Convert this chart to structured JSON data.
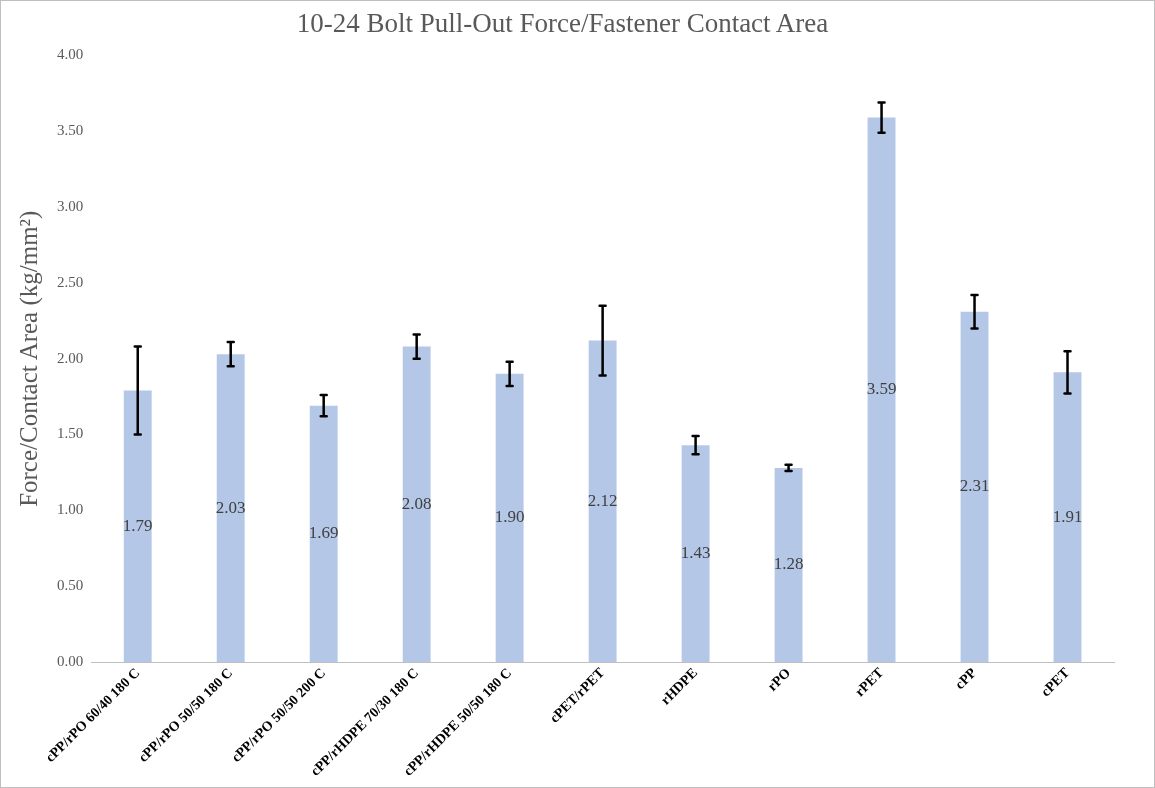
{
  "chart_data": {
    "type": "bar",
    "title": "10-24 Bolt Pull-Out Force/Fastener Contact Area",
    "ylabel": "Force/Contact Area (kg/mm²)",
    "categories": [
      "cPP/rPO 60/40 180 C",
      "cPP/rPO 50/50 180 C",
      "cPP/rPO 50/50 200 C",
      "cPP/rHDPE 70/30 180 C",
      "cPP/rHDPE 50/50 180 C",
      "cPET/rPET",
      "rHDPE",
      "rPO",
      "rPET",
      "cPP",
      "cPET"
    ],
    "series": [
      {
        "color": "#b4c7e7",
        "values": [
          1.79,
          2.03,
          1.69,
          2.08,
          1.9,
          2.12,
          1.43,
          1.28,
          3.59,
          2.31,
          1.91
        ],
        "errors": [
          0.29,
          0.08,
          0.07,
          0.08,
          0.08,
          0.23,
          0.06,
          0.02,
          0.1,
          0.11,
          0.14
        ],
        "value_labels": [
          "1.79",
          "2.03",
          "1.69",
          "2.08",
          "1.90",
          "2.12",
          "1.43",
          "1.28",
          "3.59",
          "2.31",
          "1.91"
        ]
      }
    ],
    "ylim": [
      0,
      4
    ],
    "yticks": [
      {
        "value": 0,
        "label": "0.00"
      },
      {
        "value": 0.5,
        "label": "0.50"
      },
      {
        "value": 1,
        "label": "1.00"
      },
      {
        "value": 1.5,
        "label": "1.50"
      },
      {
        "value": 2,
        "label": "2.00"
      },
      {
        "value": 2.5,
        "label": "2.50"
      },
      {
        "value": 3,
        "label": "3.00"
      },
      {
        "value": 3.5,
        "label": "3.50"
      },
      {
        "value": 4,
        "label": "4.00"
      }
    ],
    "grid": false,
    "legend": false
  }
}
